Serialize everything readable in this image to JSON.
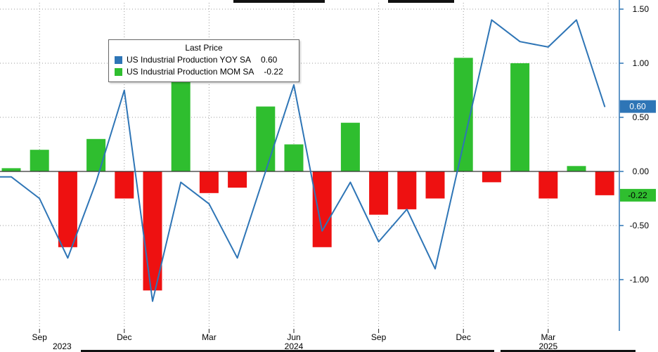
{
  "legend": {
    "title": "Last Price",
    "items": [
      {
        "label": "US Industrial Production YOY SA",
        "value": "0.60"
      },
      {
        "label": "US Industrial Production MOM SA",
        "value": "-0.22"
      }
    ]
  },
  "colors": {
    "yoy_line": "#2e75b6",
    "mom_positive": "#2fbe2f",
    "mom_negative": "#ee1111",
    "axis": "#2e75b6",
    "grid": "#999999",
    "zero_line": "#333333",
    "yoy_tag_bg": "#2e75b6",
    "yoy_tag_text": "#ffffff",
    "mom_tag_bg": "#2fbe2f",
    "mom_tag_text": "#000000"
  },
  "y_axis": {
    "ticks": [
      {
        "label": "1.50",
        "value": 1.5
      },
      {
        "label": "1.00",
        "value": 1.0
      },
      {
        "label": "0.50",
        "value": 0.5
      },
      {
        "label": "0.00",
        "value": 0.0
      },
      {
        "label": "-0.50",
        "value": -0.5
      },
      {
        "label": "-1.00",
        "value": -1.0
      }
    ],
    "last_price_tags": [
      {
        "label": "0.60",
        "value": 0.6,
        "series": "yoy"
      },
      {
        "label": "-0.22",
        "value": -0.22,
        "series": "mom"
      }
    ]
  },
  "x_axis": {
    "month_ticks": [
      {
        "label": "Sep",
        "month_index": 1
      },
      {
        "label": "Dec",
        "month_index": 4
      },
      {
        "label": "Mar",
        "month_index": 7
      },
      {
        "label": "Jun",
        "month_index": 10
      },
      {
        "label": "Sep",
        "month_index": 13
      },
      {
        "label": "Dec",
        "month_index": 16
      },
      {
        "label": "Mar",
        "month_index": 19
      }
    ],
    "year_labels": [
      {
        "label": "2023",
        "month_index": 1.8
      },
      {
        "label": "2024",
        "month_index": 10
      },
      {
        "label": "2025",
        "month_index": 19
      }
    ]
  },
  "chart_data": {
    "type": "mixed",
    "grid": "dotted",
    "ylim": [
      -1.4,
      1.6
    ],
    "x": [
      "Aug 2023",
      "Sep 2023",
      "Oct 2023",
      "Nov 2023",
      "Dec 2023",
      "Jan 2024",
      "Feb 2024",
      "Mar 2024",
      "Apr 2024",
      "May 2024",
      "Jun 2024",
      "Jul 2024",
      "Aug 2024",
      "Sep 2024",
      "Oct 2024",
      "Nov 2024",
      "Dec 2024",
      "Jan 2025",
      "Feb 2025",
      "Mar 2025",
      "Apr 2025",
      "May 2025"
    ],
    "series": [
      {
        "name": "US Industrial Production YOY SA",
        "type": "line",
        "color": "#2e75b6",
        "last_price": 0.6,
        "values": [
          -0.05,
          -0.25,
          -0.8,
          -0.1,
          0.75,
          -1.2,
          -0.1,
          -0.3,
          -0.8,
          0.0,
          0.8,
          -0.55,
          -0.1,
          -0.65,
          -0.35,
          -0.9,
          0.25,
          1.4,
          1.2,
          1.15,
          1.4,
          0.6
        ]
      },
      {
        "name": "US Industrial Production MOM SA",
        "type": "bar",
        "color_positive": "#2fbe2f",
        "color_negative": "#ee1111",
        "last_price": -0.22,
        "values": [
          0.03,
          0.2,
          -0.7,
          0.3,
          -0.25,
          -1.1,
          0.85,
          -0.2,
          -0.15,
          0.6,
          0.25,
          -0.7,
          0.45,
          -0.4,
          -0.35,
          -0.25,
          1.05,
          -0.1,
          1.0,
          -0.25,
          0.05,
          -0.22
        ]
      }
    ]
  }
}
